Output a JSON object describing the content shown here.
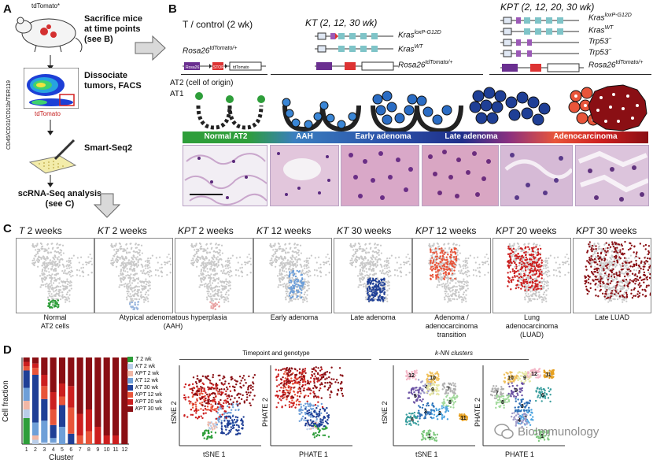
{
  "panels": {
    "A": "A",
    "B": "B",
    "C": "C",
    "D": "D"
  },
  "panelA": {
    "mouse_label": "tdTomato*",
    "step1": [
      "Sacrifice mice",
      "at time points",
      "(see B)"
    ],
    "step2": [
      "Dissociate",
      "tumors, FACS"
    ],
    "step3": "Smart-Seq2",
    "step4": [
      "scRNA-Seq analysis",
      "(see C)"
    ],
    "facs_ylabel": "CD45/CD31/CD11b/TER119",
    "facs_xlabel": "tdTomato"
  },
  "panelB": {
    "col1_title": "T / control (2 wk)",
    "col2_title": "KT (2, 12, 30 wk)",
    "col3_title": "KPT (2, 12, 20, 30 wk)",
    "rosa_label": "Rosa26",
    "rosa_sup": "tdTomato/+",
    "kras_lox": "Kras",
    "kras_lox_sup": "loxP-G12D",
    "kras_wt": "Kras",
    "kras_wt_sup": "WT",
    "trp53": "Trp53",
    "trp53_sup": "−",
    "construct_labels": [
      "Rosa26",
      "loxP",
      "STOP",
      "loxP",
      "tdTomato"
    ],
    "cell_labels": [
      "AT2 (cell of origin)",
      "AT1"
    ],
    "stages": [
      "Normal AT2",
      "AAH",
      "Early adenoma",
      "Late adenoma",
      "Adenocarcinoma"
    ]
  },
  "panelC": {
    "titles": [
      {
        "g": "T",
        "t": " 2 weeks"
      },
      {
        "g": "KT",
        "t": " 2 weeks"
      },
      {
        "g": "KPT",
        "t": " 2 weeks"
      },
      {
        "g": "KT",
        "t": " 12 weeks"
      },
      {
        "g": "KT",
        "t": " 30 weeks"
      },
      {
        "g": "KPT",
        "t": " 12 weeks"
      },
      {
        "g": "KPT",
        "t": " 20 weeks"
      },
      {
        "g": "KPT",
        "t": " 30 weeks"
      }
    ],
    "captions": [
      "Normal\nAT2 cells",
      "Atypical adenomatous hyperplasia\n(AAH)",
      "Early adenoma",
      "Late adenoma",
      "Adenoma /\nadenocarcinoma\ntransition",
      "Lung\nadenocarcinoma\n(LUAD)",
      "Late LUAD"
    ],
    "dot_colors": [
      "#2e9e3a",
      "#9ab6de",
      "#e8a0a0",
      "#6e9fd8",
      "#1f3f96",
      "#e8553a",
      "#cc1f1f",
      "#8a0f14"
    ]
  },
  "panelD": {
    "ylabel": "Cell fraction",
    "xlabel": "Cluster",
    "group1_title": "Timepoint and genotype",
    "group2_title": "k-NN clusters",
    "tsne_x": "tSNE 1",
    "tsne_y": "tSNE 2",
    "phate_x": "PHATE 1",
    "phate_y": "PHATE 2",
    "legend": [
      {
        "g": "T",
        "t": " 2 wk",
        "color": "#2e9e3a"
      },
      {
        "g": "KT",
        "t": " 2 wk",
        "color": "#b9cde8"
      },
      {
        "g": "KPT",
        "t": " 2 wk",
        "color": "#f1b7a6"
      },
      {
        "g": "KT",
        "t": " 12 wk",
        "color": "#6e9fd8"
      },
      {
        "g": "KT",
        "t": " 30 wk",
        "color": "#1f3f96"
      },
      {
        "g": "KPT",
        "t": " 12 wk",
        "color": "#e8553a"
      },
      {
        "g": "KPT",
        "t": " 20 wk",
        "color": "#cc1f1f"
      },
      {
        "g": "KPT",
        "t": " 30 wk",
        "color": "#8a0f14"
      }
    ],
    "watermark": "BioImmunology"
  },
  "chart_data": {
    "type": "bar",
    "stacked": true,
    "categories": [
      "1",
      "2",
      "3",
      "4",
      "5",
      "6",
      "7",
      "8",
      "9",
      "10",
      "11",
      "12"
    ],
    "ylim": [
      0,
      1
    ],
    "ylabel": "Cell fraction",
    "xlabel": "Cluster",
    "series": [
      {
        "name": "T 2 wk",
        "values": [
          0.3,
          0.0,
          0.0,
          0.0,
          0.0,
          0.0,
          0.0,
          0.0,
          0.0,
          0.0,
          0.0,
          0.0
        ]
      },
      {
        "name": "KT 2 wk",
        "values": [
          0.1,
          0.05,
          0.02,
          0.02,
          0.0,
          0.0,
          0.0,
          0.0,
          0.0,
          0.0,
          0.0,
          0.0
        ]
      },
      {
        "name": "KPT 2 wk",
        "values": [
          0.1,
          0.05,
          0.0,
          0.0,
          0.0,
          0.0,
          0.0,
          0.0,
          0.0,
          0.0,
          0.0,
          0.0
        ]
      },
      {
        "name": "KT 12 wk",
        "values": [
          0.15,
          0.15,
          0.25,
          0.05,
          0.2,
          0.0,
          0.0,
          0.0,
          0.0,
          0.0,
          0.0,
          0.0
        ]
      },
      {
        "name": "KT 30 wk",
        "values": [
          0.2,
          0.55,
          0.25,
          0.15,
          0.25,
          0.12,
          0.0,
          0.0,
          0.0,
          0.0,
          0.0,
          0.0
        ]
      },
      {
        "name": "KPT 12 wk",
        "values": [
          0.05,
          0.08,
          0.15,
          0.18,
          0.1,
          0.3,
          0.1,
          0.15,
          0.0,
          0.0,
          0.0,
          0.0
        ]
      },
      {
        "name": "KPT 20 wk",
        "values": [
          0.05,
          0.05,
          0.13,
          0.2,
          0.15,
          0.25,
          0.25,
          0.25,
          0.2,
          0.1,
          0.1,
          0.0
        ]
      },
      {
        "name": "KPT 30 wk",
        "values": [
          0.05,
          0.07,
          0.2,
          0.4,
          0.3,
          0.33,
          0.65,
          0.6,
          0.8,
          0.9,
          0.9,
          1.0
        ]
      }
    ],
    "colors": [
      "#2e9e3a",
      "#b9cde8",
      "#f1b7a6",
      "#6e9fd8",
      "#1f3f96",
      "#e8553a",
      "#cc1f1f",
      "#8a0f14"
    ]
  }
}
